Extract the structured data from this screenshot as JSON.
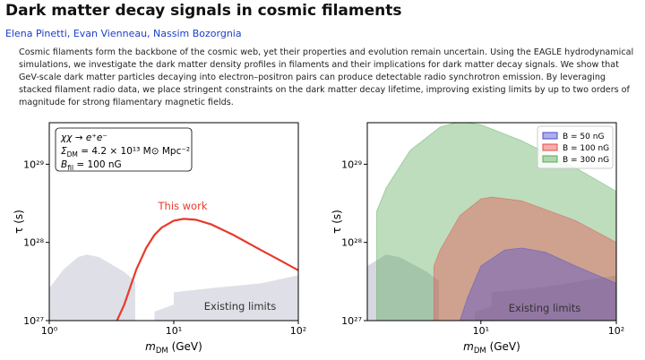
{
  "title": "Dark matter decay signals in cosmic filaments",
  "authors": "Elena Pinetti, Evan Vienneau, Nassim Bozorgnia",
  "abstract": "Cosmic filaments form the backbone of the cosmic web, yet their properties and evolution remain uncertain. Using the EAGLE hydrodynamical simulations, we investigate the dark matter density profiles in filaments and their implications for dark matter decay signals. We show that GeV-scale dark matter particles decaying into electron–positron pairs can produce detectable radio synchrotron emission. By leveraging stacked filament radio data, we place stringent constraints on the dark matter decay lifetime, improving existing limits by up to two orders of magnitude for strong filamentary magnetic fields.",
  "chart_data": [
    {
      "type": "line",
      "xlabel": {
        "base": "m",
        "sub": "DM",
        "unit": " (GeV)"
      },
      "ylabel": "τ (s)",
      "log_x": true,
      "log_y": true,
      "xlim": [
        1,
        100
      ],
      "ylim": [
        1e+27,
        3.4e+29
      ],
      "xticks": [
        {
          "value": 1,
          "label": "10⁰"
        },
        {
          "value": 10,
          "label": "10¹"
        },
        {
          "value": 100,
          "label": "10²"
        }
      ],
      "yticks": [
        {
          "value": 1e+27,
          "label": "10²⁷"
        },
        {
          "value": 1e+28,
          "label": "10²⁸"
        },
        {
          "value": 1e+29,
          "label": "10²⁹"
        }
      ],
      "textbox": [
        {
          "main": "χχ → e⁺e⁻"
        },
        {
          "main": "Σ",
          "sub": "DM",
          "rest": " = 4.2 × 10¹³ M⊙ Mpc⁻²"
        },
        {
          "main": "B",
          "sub": "fil",
          "rest": " = 100 nG"
        }
      ],
      "series": [
        {
          "name": "Existing limits",
          "style": "area",
          "color": "#d9d9e3",
          "x": [
            1,
            1.3,
            1.7,
            2,
            2.5,
            3,
            4,
            4.9,
            6,
            7,
            10,
            10,
            20,
            50,
            100
          ],
          "values": [
            2.6e+27,
            4.5e+27,
            6.5e+27,
            7e+27,
            6.5e+27,
            5.5e+27,
            4.2e+27,
            3.2e+27,
            null,
            1.3e+27,
            1.6e+27,
            2.3e+27,
            2.6e+27,
            3e+27,
            3.8e+27
          ]
        },
        {
          "name": "This work",
          "style": "line",
          "color": "#e8392a",
          "x": [
            3.5,
            4,
            5,
            6,
            7,
            8,
            10,
            12,
            15,
            20,
            30,
            50,
            70,
            100
          ],
          "values": [
            1e+27,
            1.6e+27,
            4.5e+27,
            8.5e+27,
            1.25e+28,
            1.55e+28,
            1.9e+28,
            2e+28,
            1.95e+28,
            1.7e+28,
            1.25e+28,
            8e+27,
            6e+27,
            4.4e+27
          ]
        }
      ]
    },
    {
      "type": "band",
      "xlabel": {
        "base": "m",
        "sub": "DM",
        "unit": " (GeV)"
      },
      "ylabel": "τ (s)",
      "log_x": true,
      "log_y": true,
      "legend": "upper right",
      "xlim": [
        1.45,
        100
      ],
      "ylim": [
        1e+27,
        3.4e+29
      ],
      "xticks": [
        {
          "value": 10,
          "label": "10¹"
        },
        {
          "value": 100,
          "label": "10²"
        }
      ],
      "yticks": [
        {
          "value": 1e+27,
          "label": "10²⁷"
        },
        {
          "value": 1e+28,
          "label": "10²⁸"
        },
        {
          "value": 1e+29,
          "label": "10²⁹"
        }
      ],
      "series": [
        {
          "name": "Existing limits",
          "style": "area",
          "color": "#d0d0dc",
          "x": [
            1.45,
            2,
            2.5,
            3,
            4,
            4.9,
            6,
            9,
            12,
            12,
            30,
            100
          ],
          "values": [
            5e+27,
            7e+27,
            6.5e+27,
            5.5e+27,
            4.2e+27,
            3.2e+27,
            null,
            1.3e+27,
            1.5e+27,
            2.3e+27,
            2.7e+27,
            3.8e+27
          ]
        },
        {
          "name": "B = 300 nG",
          "style": "band",
          "color": "#5aaa5a",
          "x": [
            1.7,
            2,
            3,
            5,
            7,
            10,
            20,
            50,
            100
          ],
          "values": [
            2.5e+28,
            5e+28,
            1.5e+29,
            3e+29,
            3.5e+29,
            3.2e+29,
            2e+29,
            9e+28,
            4.5e+28
          ],
          "lower": [
            1e+27,
            1e+27,
            1e+27,
            1e+27,
            1e+27,
            1e+27,
            1e+27,
            1e+27,
            1e+27
          ]
        },
        {
          "name": "B = 100 nG",
          "style": "band",
          "color": "#e84a4a",
          "x": [
            4.5,
            5,
            7,
            10,
            12,
            20,
            50,
            100
          ],
          "values": [
            5e+27,
            8e+27,
            2.2e+28,
            3.6e+28,
            3.8e+28,
            3.4e+28,
            1.9e+28,
            1e+28
          ],
          "lower": [
            1e+27,
            1e+27,
            1e+27,
            1e+27,
            1e+27,
            1e+27,
            1e+27,
            1e+27
          ]
        },
        {
          "name": "B = 50 nG",
          "style": "band",
          "color": "#4b4bd0",
          "x": [
            7,
            8,
            10,
            15,
            20,
            30,
            50,
            100
          ],
          "values": [
            1e+27,
            2e+27,
            5e+27,
            8e+27,
            8.5e+27,
            7.5e+27,
            5e+27,
            3e+27
          ],
          "lower": [
            1e+27,
            1e+27,
            1e+27,
            1e+27,
            1e+27,
            1e+27,
            1e+27,
            1e+27
          ]
        }
      ]
    }
  ]
}
